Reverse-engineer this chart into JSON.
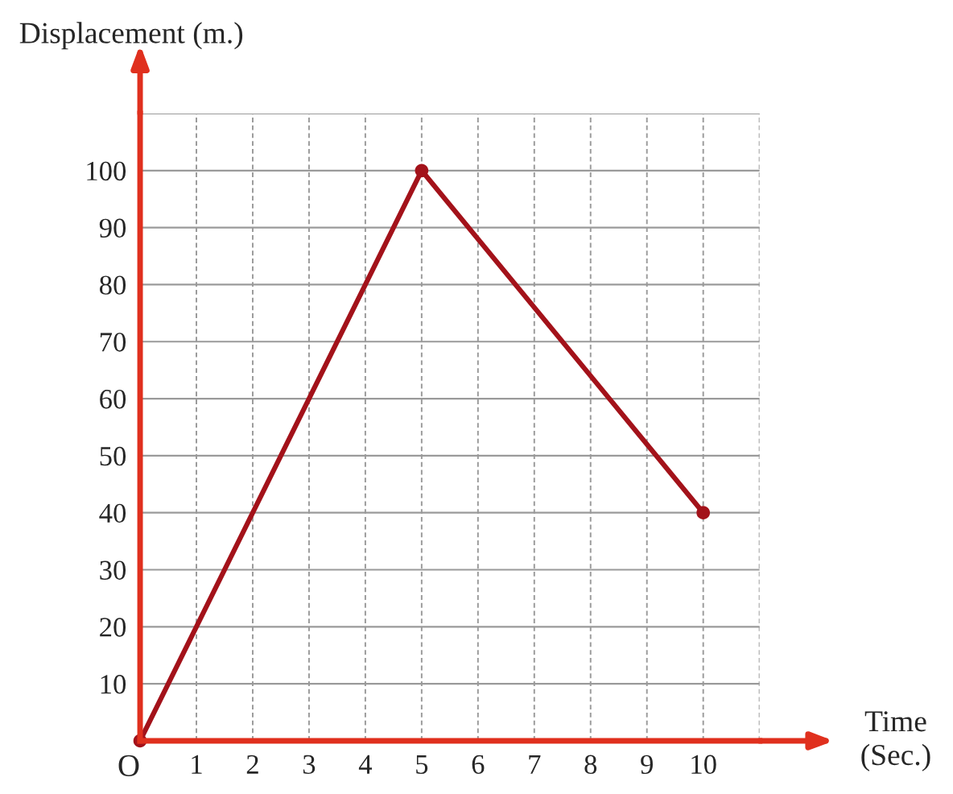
{
  "chart_data": {
    "type": "line",
    "xlabel": "Time\n(Sec.)",
    "ylabel": "Displacement (m.)",
    "x": [
      0,
      5,
      10
    ],
    "series": [
      {
        "color": "#a3121a",
        "values": [
          0,
          100,
          40
        ]
      }
    ],
    "xlim": [
      0,
      11
    ],
    "ylim": [
      0,
      110
    ],
    "xticks": [
      {
        "value": 0,
        "label": "O"
      },
      1,
      2,
      3,
      4,
      5,
      6,
      7,
      8,
      9,
      10,
      {
        "value": 11,
        "label": null
      }
    ],
    "yticks": [
      10,
      20,
      30,
      40,
      50,
      60,
      70,
      80,
      90,
      100,
      {
        "value": 110,
        "label": null
      }
    ],
    "grid": true,
    "marker": "circle",
    "line_style": "solid"
  }
}
